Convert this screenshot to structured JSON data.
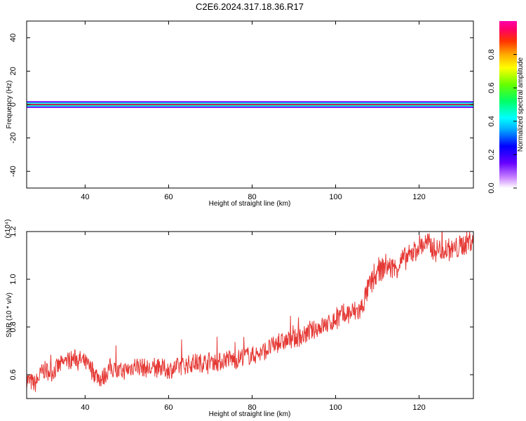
{
  "title": "C2E6.2024.317.18.36.R17",
  "chart_data": [
    {
      "type": "heatmap",
      "xlabel": "Height of straight line (km)",
      "ylabel": "Frequency (Hz)",
      "xlim": [
        26,
        133
      ],
      "ylim": [
        -50,
        50
      ],
      "xticks": [
        40,
        60,
        80,
        100,
        120
      ],
      "yticks": [
        -40,
        -20,
        0,
        20,
        40
      ],
      "colorbar": {
        "label": "Normalized spectral amplitude",
        "range": [
          0,
          1
        ],
        "ticks": [
          "0.0",
          "0.2",
          "0.4",
          "0.6",
          "0.8"
        ]
      },
      "band_center_hz": 0,
      "band_profile": [
        {
          "offset_hz": 0.0,
          "amplitude": 1.0
        },
        {
          "offset_hz": 0.5,
          "amplitude": 0.8
        },
        {
          "offset_hz": 1.2,
          "amplitude": 0.5
        },
        {
          "offset_hz": 2.0,
          "amplitude": 0.2
        },
        {
          "offset_hz": 3.0,
          "amplitude": 0.05
        }
      ]
    },
    {
      "type": "line",
      "xlabel": "Height of straight line (km)",
      "ylabel": "SNR (10 * v/v)",
      "y_multiplier": "(x10⁴)",
      "xlim": [
        26,
        133
      ],
      "ylim": [
        0.5,
        1.2
      ],
      "xticks": [
        40,
        60,
        80,
        100,
        120
      ],
      "yticks": [
        "0.6",
        "0.8",
        "1.0",
        "1.2"
      ],
      "color": "#e53935",
      "x": [
        26,
        28,
        30,
        32,
        34,
        36,
        38,
        40,
        42,
        44,
        46,
        48,
        50,
        52,
        54,
        56,
        58,
        60,
        62,
        64,
        66,
        68,
        70,
        72,
        74,
        76,
        78,
        80,
        82,
        84,
        86,
        88,
        90,
        92,
        94,
        96,
        98,
        100,
        102,
        104,
        106,
        108,
        110,
        112,
        114,
        116,
        118,
        120,
        122,
        124,
        126,
        128,
        130,
        132,
        133
      ],
      "values": [
        0.58,
        0.56,
        0.62,
        0.61,
        0.64,
        0.66,
        0.67,
        0.65,
        0.61,
        0.58,
        0.63,
        0.61,
        0.62,
        0.64,
        0.63,
        0.62,
        0.63,
        0.62,
        0.63,
        0.64,
        0.65,
        0.65,
        0.66,
        0.65,
        0.67,
        0.66,
        0.68,
        0.68,
        0.69,
        0.71,
        0.73,
        0.74,
        0.75,
        0.76,
        0.78,
        0.8,
        0.81,
        0.83,
        0.85,
        0.86,
        0.87,
        0.97,
        1.02,
        1.06,
        1.04,
        1.08,
        1.1,
        1.14,
        1.15,
        1.12,
        1.13,
        1.12,
        1.14,
        1.16,
        1.17
      ]
    }
  ]
}
